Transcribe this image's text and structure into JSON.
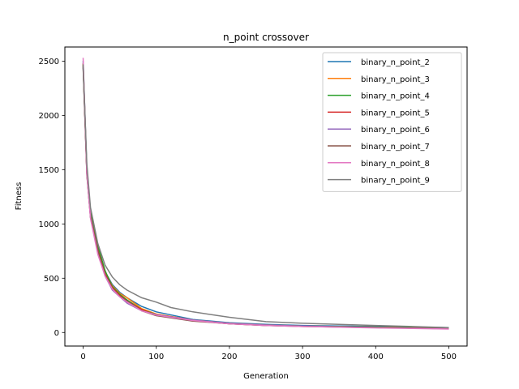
{
  "chart_data": {
    "type": "line",
    "title": "n_point crossover",
    "xlabel": "Generation",
    "ylabel": "Fitness",
    "xlim": [
      -25,
      525
    ],
    "ylim": [
      -125,
      2630
    ],
    "xticks": [
      0,
      100,
      200,
      300,
      400,
      500
    ],
    "yticks": [
      0,
      500,
      1000,
      1500,
      2000,
      2500
    ],
    "grid": false,
    "legend_position": "top-right",
    "series": [
      {
        "name": "binary_n_point_2",
        "color": "#1f77b4",
        "x": [
          0,
          5,
          10,
          20,
          30,
          40,
          50,
          60,
          80,
          100,
          150,
          200,
          250,
          300,
          400,
          500
        ],
        "y": [
          2500,
          1500,
          1100,
          780,
          560,
          440,
          370,
          320,
          240,
          190,
          120,
          90,
          75,
          65,
          55,
          45
        ]
      },
      {
        "name": "binary_n_point_3",
        "color": "#ff7f0e",
        "x": [
          0,
          5,
          10,
          20,
          30,
          40,
          50,
          60,
          80,
          100,
          150,
          200,
          250,
          300,
          400,
          500
        ],
        "y": [
          2470,
          1480,
          1080,
          760,
          560,
          430,
          360,
          320,
          220,
          170,
          115,
          85,
          70,
          60,
          50,
          40
        ]
      },
      {
        "name": "binary_n_point_4",
        "color": "#2ca02c",
        "x": [
          0,
          5,
          10,
          20,
          30,
          40,
          50,
          60,
          80,
          100,
          150,
          200,
          250,
          300,
          400,
          500
        ],
        "y": [
          2460,
          1490,
          1100,
          800,
          570,
          420,
          350,
          300,
          210,
          165,
          110,
          85,
          70,
          60,
          48,
          40
        ]
      },
      {
        "name": "binary_n_point_5",
        "color": "#d62728",
        "x": [
          0,
          5,
          10,
          20,
          30,
          40,
          50,
          60,
          80,
          100,
          150,
          200,
          250,
          300,
          400,
          500
        ],
        "y": [
          2480,
          1470,
          1070,
          760,
          540,
          410,
          340,
          290,
          210,
          160,
          110,
          80,
          65,
          58,
          45,
          35
        ]
      },
      {
        "name": "binary_n_point_6",
        "color": "#9467bd",
        "x": [
          0,
          5,
          10,
          20,
          30,
          40,
          50,
          60,
          80,
          100,
          150,
          200,
          250,
          300,
          400,
          500
        ],
        "y": [
          2450,
          1460,
          1060,
          740,
          520,
          390,
          330,
          270,
          200,
          165,
          115,
          85,
          70,
          60,
          45,
          35
        ]
      },
      {
        "name": "binary_n_point_7",
        "color": "#8c564b",
        "x": [
          0,
          5,
          10,
          20,
          30,
          40,
          50,
          60,
          80,
          100,
          150,
          200,
          250,
          300,
          400,
          500
        ],
        "y": [
          2440,
          1450,
          1060,
          750,
          530,
          400,
          330,
          290,
          200,
          155,
          105,
          80,
          65,
          55,
          45,
          35
        ]
      },
      {
        "name": "binary_n_point_8",
        "color": "#e377c2",
        "x": [
          0,
          5,
          10,
          20,
          30,
          40,
          50,
          60,
          80,
          100,
          150,
          200,
          250,
          300,
          400,
          500
        ],
        "y": [
          2530,
          1470,
          1050,
          720,
          520,
          400,
          330,
          280,
          200,
          160,
          110,
          80,
          65,
          55,
          42,
          32
        ]
      },
      {
        "name": "binary_n_point_9",
        "color": "#7f7f7f",
        "x": [
          0,
          5,
          10,
          20,
          30,
          40,
          50,
          60,
          80,
          100,
          120,
          150,
          200,
          250,
          300,
          400,
          500
        ],
        "y": [
          2470,
          1550,
          1150,
          820,
          620,
          510,
          440,
          390,
          320,
          280,
          230,
          190,
          140,
          100,
          85,
          65,
          45
        ]
      }
    ]
  }
}
